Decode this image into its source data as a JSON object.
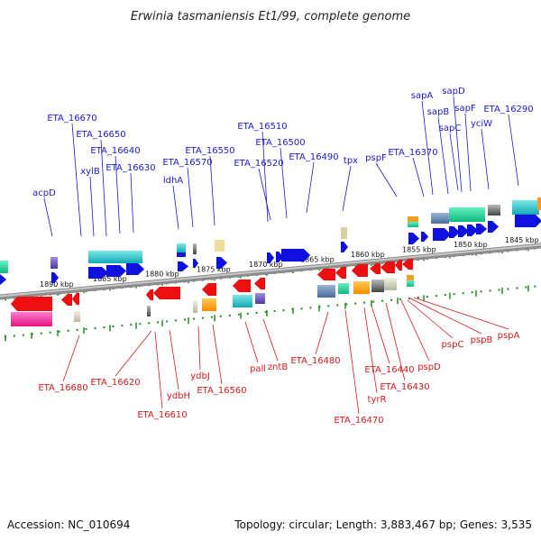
{
  "title": "Erwinia tasmaniensis Et1/99, complete genome",
  "footer": {
    "accession": "Accession: NC_010694",
    "topology": "Topology: circular; Length: 3,883,467 bp; Genes: 3,535"
  },
  "colors": {
    "forward_label": "#1a1acc",
    "reverse_label": "#d11a1a",
    "forward_gene": "#1010e0",
    "reverse_gene": "#ee1010",
    "backbone": "#808080",
    "tick": "#1f8a1f"
  },
  "kbp_labels": [
    "1890 kbp",
    "1885 kbp",
    "1880 kbp",
    "1875 kbp",
    "1870 kbp",
    "1865 kbp",
    "1860 kbp",
    "1855 kbp",
    "1850 kbp",
    "1845 kbp"
  ],
  "forward_labels": [
    "ETA_16670",
    "ETA_16650",
    "ETA_16640",
    "xylB",
    "ETA_16630",
    "acpD",
    "ldhA",
    "ETA_16570",
    "ETA_16550",
    "ETA_16510",
    "ETA_16500",
    "ETA_16520",
    "ETA_16490",
    "tpx",
    "pspF",
    "ETA_16370",
    "sapA",
    "sapB",
    "sapD",
    "sapF",
    "sapC",
    "yciW",
    "ETA_16290"
  ],
  "reverse_labels": [
    "ETA_16680",
    "ETA_16620",
    "ETA_16610",
    "ydbH",
    "ydbJ",
    "ETA_16560",
    "pall",
    "zntB",
    "ETA_16480",
    "ETA_16470",
    "tyrR",
    "ETA_16440",
    "ETA_16430",
    "pspD",
    "pspC",
    "pspB",
    "pspA"
  ]
}
